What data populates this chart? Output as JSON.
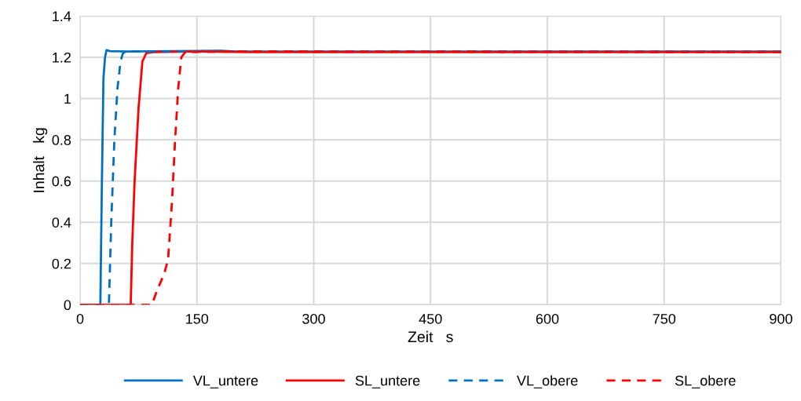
{
  "chart_data": {
    "type": "line",
    "xlabel": "Zeit   s",
    "ylabel": "Inhalt   kg",
    "xlim": [
      0,
      900
    ],
    "ylim": [
      0,
      1.4
    ],
    "xticks": [
      0,
      150,
      300,
      450,
      600,
      750,
      900
    ],
    "yticks": [
      0,
      0.2,
      0.4,
      0.6,
      0.8,
      1,
      1.2,
      1.4
    ],
    "grid": true,
    "legend": "bottom",
    "series": [
      {
        "name": "VL_untere",
        "color": "#0070c0",
        "line_style": "solid",
        "x": [
          0,
          26,
          28,
          30,
          32,
          34,
          38,
          60,
          180,
          200,
          900
        ],
        "values": [
          0,
          0,
          0.6,
          1.1,
          1.2,
          1.235,
          1.23,
          1.228,
          1.232,
          1.228,
          1.228
        ]
      },
      {
        "name": "SL_untere",
        "color": "#ff0000",
        "line_style": "solid",
        "x": [
          0,
          65,
          67,
          70,
          75,
          80,
          85,
          95,
          150,
          215,
          900
        ],
        "values": [
          0,
          0,
          0.3,
          0.6,
          0.95,
          1.18,
          1.22,
          1.225,
          1.228,
          1.225,
          1.225
        ]
      },
      {
        "name": "VL_obere",
        "color": "#0070c0",
        "line_style": "dashed",
        "x": [
          0,
          37,
          40,
          44,
          48,
          52,
          55,
          60,
          900
        ],
        "values": [
          0,
          0,
          0.4,
          0.8,
          1.05,
          1.18,
          1.22,
          1.228,
          1.228
        ]
      },
      {
        "name": "SL_obere",
        "color": "#ff0000",
        "line_style": "dashed",
        "x": [
          0,
          92,
          100,
          108,
          113,
          118,
          122,
          126,
          130,
          135,
          200,
          900
        ],
        "values": [
          0,
          0,
          0.08,
          0.15,
          0.22,
          0.5,
          0.8,
          1.05,
          1.2,
          1.225,
          1.228,
          1.225
        ]
      }
    ]
  }
}
